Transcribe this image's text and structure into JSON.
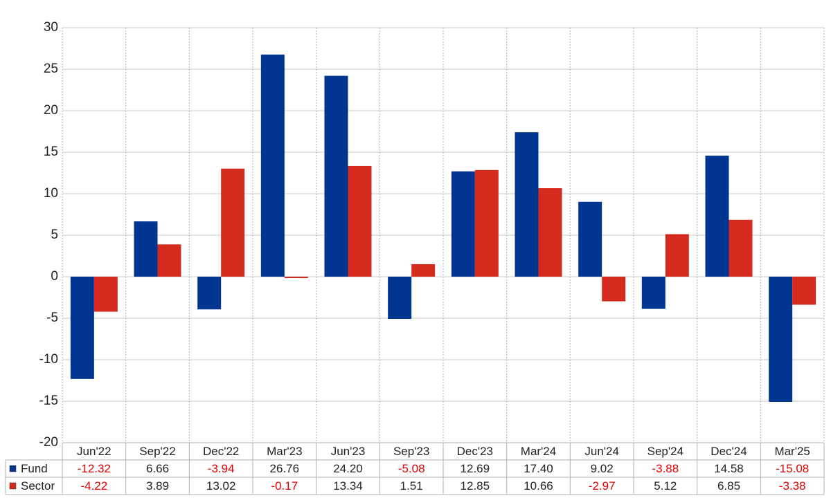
{
  "chart_data": {
    "type": "bar",
    "categories": [
      "Jun'22",
      "Sep'22",
      "Dec'22",
      "Mar'23",
      "Jun'23",
      "Sep'23",
      "Dec'23",
      "Mar'24",
      "Jun'24",
      "Sep'24",
      "Dec'24",
      "Mar'25"
    ],
    "series": [
      {
        "name": "Fund",
        "color": "#003591",
        "values": [
          -12.32,
          6.66,
          -3.94,
          26.76,
          24.2,
          -5.08,
          12.69,
          17.4,
          9.02,
          -3.88,
          14.58,
          -15.08
        ],
        "value_labels": [
          "-12.32",
          "6.66",
          "-3.94",
          "26.76",
          "24.20",
          "-5.08",
          "12.69",
          "17.40",
          "9.02",
          "-3.88",
          "14.58",
          "-15.08"
        ]
      },
      {
        "name": "Sector",
        "color": "#d52b1e",
        "values": [
          -4.22,
          3.89,
          13.02,
          -0.17,
          13.34,
          1.51,
          12.85,
          10.66,
          -2.97,
          5.12,
          6.85,
          -3.38
        ],
        "value_labels": [
          "-4.22",
          "3.89",
          "13.02",
          "-0.17",
          "13.34",
          "1.51",
          "12.85",
          "10.66",
          "-2.97",
          "5.12",
          "6.85",
          "-3.38"
        ]
      }
    ],
    "ylim": [
      -20,
      30
    ],
    "yticks": [
      -20,
      -15,
      -10,
      -5,
      0,
      5,
      10,
      15,
      20,
      25,
      30
    ],
    "grid": true
  }
}
